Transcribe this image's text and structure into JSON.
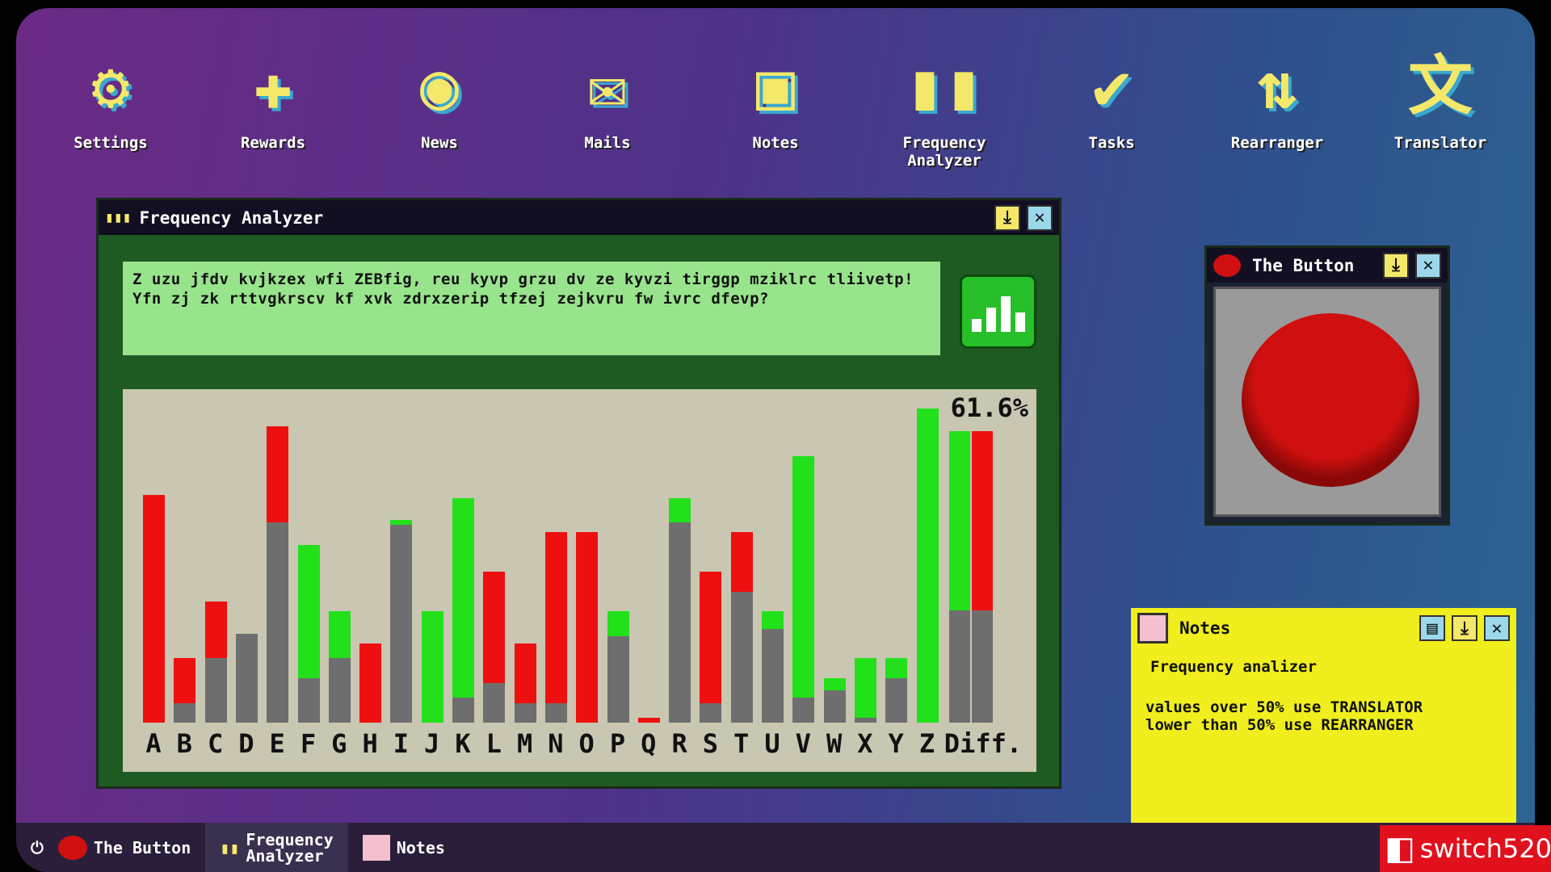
{
  "desktop": {
    "icons": [
      {
        "label": "Settings",
        "icon": "gear-icon",
        "glyph": "⚙"
      },
      {
        "label": "Rewards",
        "icon": "rewards-icon",
        "glyph": "✚"
      },
      {
        "label": "News",
        "icon": "news-icon",
        "glyph": "◉"
      },
      {
        "label": "Mails",
        "icon": "mail-icon",
        "glyph": "✉"
      },
      {
        "label": "Notes",
        "icon": "notes-icon",
        "glyph": "▣"
      },
      {
        "label": "Frequency\nAnalyzer",
        "icon": "frequency-analyzer-icon",
        "glyph": "▮▮"
      },
      {
        "label": "Tasks",
        "icon": "tasks-icon",
        "glyph": "✔"
      },
      {
        "label": "Rearranger",
        "icon": "rearranger-icon",
        "glyph": "⇅"
      },
      {
        "label": "Translator",
        "icon": "translator-icon",
        "glyph": "文"
      }
    ]
  },
  "freq_window": {
    "title": "Frequency Analyzer",
    "input_text": "Z uzu jfdv kvjkzex wfi ZEBfig, reu kyvp grzu dv ze kyvzi tirggp mziklrc tliivetp! Yfn zj zk rttvgkrscv kf xvk zdrxzerip tfzej zejkvru fw ivrc dfevp?"
  },
  "chart_data": {
    "type": "bar",
    "stacked": true,
    "colors": {
      "base": "#6e6e6e",
      "over": "#ee1010",
      "under": "#22e01a"
    },
    "categories": [
      "A",
      "B",
      "C",
      "D",
      "E",
      "F",
      "G",
      "H",
      "I",
      "J",
      "K",
      "L",
      "M",
      "N",
      "O",
      "P",
      "Q",
      "R",
      "S",
      "T",
      "U",
      "V",
      "W",
      "X",
      "Y",
      "Z"
    ],
    "values": [
      9.2,
      2.6,
      4.9,
      3.6,
      12.0,
      7.2,
      4.5,
      3.2,
      8.2,
      4.5,
      9.1,
      6.1,
      3.2,
      7.7,
      7.7,
      4.5,
      0.2,
      9.1,
      6.1,
      7.7,
      4.5,
      10.8,
      1.8,
      2.6,
      2.6,
      12.7
    ],
    "base_values": [
      0,
      0.8,
      2.6,
      3.6,
      8.1,
      1.8,
      2.6,
      0,
      8.0,
      0,
      1.0,
      1.6,
      0.8,
      0.8,
      0,
      3.5,
      0,
      8.1,
      0.8,
      5.3,
      3.8,
      1.0,
      1.3,
      0.2,
      1.8,
      0
    ],
    "top_color": [
      "red",
      "red",
      "red",
      "none",
      "red",
      "green",
      "green",
      "red",
      "green",
      "green",
      "green",
      "red",
      "red",
      "red",
      "red",
      "green",
      "red",
      "green",
      "red",
      "red",
      "green",
      "green",
      "green",
      "green",
      "green",
      "green"
    ],
    "diff": {
      "label": "Diff.",
      "percent_label": "61.6%",
      "percent": 61.6
    }
  },
  "button_window": {
    "title": "The Button"
  },
  "notes_window": {
    "title": "Notes",
    "heading": "Frequency analizer",
    "line1": "values over 50% use TRANSLATOR",
    "line2": "lower than 50% use REARRANGER"
  },
  "taskbar": {
    "items": [
      {
        "label": "The Button"
      },
      {
        "label": "Frequency\nAnalyzer"
      },
      {
        "label": "Notes"
      }
    ]
  },
  "watermark": "switch520"
}
